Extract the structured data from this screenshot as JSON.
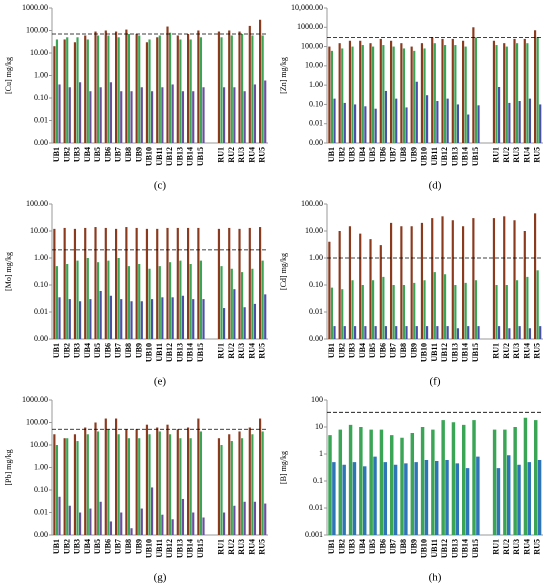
{
  "chart_data": [
    {
      "type": "bar",
      "log": true,
      "panel_label": "(c)",
      "ylabel": "[Cu] mg/kg",
      "categories": [
        "UB1",
        "UB2",
        "UB3",
        "UB4",
        "UB5",
        "UB6",
        "UB7",
        "UB8",
        "UB9",
        "UB10",
        "UB11",
        "UB12",
        "UB13",
        "UB14",
        "UB15",
        null,
        "RU1",
        "RU2",
        "RU3",
        "RU4",
        "RU5"
      ],
      "series": [
        {
          "color": "#8b3a1e",
          "values": [
            20,
            40,
            30,
            60,
            90,
            100,
            90,
            110,
            70,
            30,
            50,
            150,
            60,
            70,
            100,
            null,
            90,
            100,
            90,
            160,
            300
          ]
        },
        {
          "color": "#3aa655",
          "values": [
            40,
            50,
            50,
            40,
            60,
            60,
            50,
            70,
            60,
            40,
            60,
            80,
            40,
            40,
            50,
            null,
            50,
            60,
            70,
            60,
            60
          ]
        },
        {
          "color": "#6a4fa0",
          "values": [
            0.4,
            0.3,
            0.5,
            0.2,
            0.3,
            0.5,
            0.2,
            0.2,
            0.3,
            0.2,
            0.3,
            0.4,
            0.2,
            0.2,
            0.3,
            null,
            0.3,
            0.3,
            0.2,
            0.4,
            0.6
          ]
        }
      ],
      "threshold": 70,
      "ylim": [
        0.001,
        1000
      ],
      "yticks": [
        {
          "value": 0.001,
          "label": "0.00"
        },
        {
          "value": 0.01,
          "label": "0.01"
        },
        {
          "value": 0.1,
          "label": "0.10"
        },
        {
          "value": 1,
          "label": "1.00"
        },
        {
          "value": 10,
          "label": "10.00"
        },
        {
          "value": 100,
          "label": "100.00"
        },
        {
          "value": 1000,
          "label": "1000.00"
        }
      ]
    },
    {
      "type": "bar",
      "log": true,
      "panel_label": "(d)",
      "ylabel": "[Zn] mg/kg",
      "categories": [
        "UB1",
        "UB2",
        "UB3",
        "UB4",
        "UB5",
        "UB6",
        "UB7",
        "UB8",
        "UB9",
        "UB10",
        "UB11",
        "UB12",
        "UB13",
        "UB14",
        "UB15",
        null,
        "RU1",
        "RU2",
        "RU3",
        "RU4",
        "RU5"
      ],
      "series": [
        {
          "color": "#8b3a1e",
          "values": [
            100,
            150,
            200,
            200,
            150,
            250,
            200,
            150,
            100,
            150,
            300,
            250,
            250,
            200,
            1000,
            null,
            200,
            150,
            250,
            250,
            700
          ]
        },
        {
          "color": "#3aa655",
          "values": [
            60,
            80,
            100,
            120,
            100,
            120,
            100,
            80,
            60,
            80,
            150,
            120,
            120,
            100,
            300,
            null,
            120,
            100,
            150,
            150,
            300
          ]
        },
        {
          "color": "#4b4fa8",
          "values": [
            0.2,
            0.12,
            0.1,
            0.08,
            0.06,
            0.5,
            0.2,
            0.07,
            1.5,
            0.3,
            0.15,
            0.2,
            0.1,
            0.03,
            0.09,
            null,
            0.8,
            0.12,
            0.15,
            0.2,
            0.1
          ]
        }
      ],
      "threshold": 300,
      "ylim": [
        0.001,
        10000
      ],
      "yticks": [
        {
          "value": 0.001,
          "label": "0.00"
        },
        {
          "value": 0.01,
          "label": "0.01"
        },
        {
          "value": 0.1,
          "label": "0.10"
        },
        {
          "value": 1,
          "label": "1.00"
        },
        {
          "value": 10,
          "label": "10.00"
        },
        {
          "value": 100,
          "label": "100.00"
        },
        {
          "value": 1000,
          "label": "1000.00"
        },
        {
          "value": 10000,
          "label": "10,000.00"
        }
      ]
    },
    {
      "type": "bar",
      "log": true,
      "panel_label": "(e)",
      "ylabel": "[Mo] mg/kg",
      "categories": [
        "UB1",
        "UB2",
        "UB3",
        "UB4",
        "UB5",
        "UB6",
        "UB7",
        "UB8",
        "UB9",
        "UB10",
        "UB11",
        "UB12",
        "UB13",
        "UB14",
        "UB15",
        null,
        "RU1",
        "RU2",
        "RU3",
        "RU4",
        "RU5"
      ],
      "series": [
        {
          "color": "#8b3a1e",
          "values": [
            12,
            13,
            12,
            13,
            14,
            13,
            12,
            14,
            13,
            12,
            12,
            13,
            13,
            13,
            13,
            null,
            12,
            13,
            12,
            13,
            14
          ]
        },
        {
          "color": "#3aa655",
          "values": [
            0.5,
            0.6,
            0.8,
            1,
            0.7,
            0.8,
            1,
            0.5,
            0.6,
            0.4,
            0.5,
            0.7,
            0.8,
            0.6,
            0.8,
            null,
            0.5,
            0.4,
            0.3,
            0.4,
            0.8
          ]
        },
        {
          "color": "#4b4fa8",
          "values": [
            0.035,
            0.03,
            0.025,
            0.03,
            0.06,
            0.04,
            0.03,
            0.025,
            0.025,
            0.03,
            0.035,
            0.035,
            0.04,
            0.03,
            0.03,
            null,
            0.014,
            0.07,
            0.015,
            0.02,
            0.045
          ]
        }
      ],
      "threshold": 2,
      "ylim": [
        0.001,
        100
      ],
      "yticks": [
        {
          "value": 0.001,
          "label": "0.00"
        },
        {
          "value": 0.01,
          "label": "0.01"
        },
        {
          "value": 0.1,
          "label": "0.10"
        },
        {
          "value": 1,
          "label": "1.00"
        },
        {
          "value": 10,
          "label": "10.00"
        },
        {
          "value": 100,
          "label": "100.00"
        }
      ]
    },
    {
      "type": "bar",
      "log": true,
      "panel_label": "(f)",
      "ylabel": "[Cd] mg/kg",
      "categories": [
        "UB1",
        "UB2",
        "UB3",
        "UB4",
        "UB5",
        "UB6",
        "UB7",
        "UB8",
        "UB9",
        "UB10",
        "UB11",
        "UB12",
        "UB13",
        "UB14",
        "UB15",
        null,
        "RU1",
        "RU2",
        "RU3",
        "RU4",
        "RU5"
      ],
      "series": [
        {
          "color": "#8b3a1e",
          "values": [
            4,
            10,
            15,
            8,
            5,
            3,
            20,
            15,
            15,
            20,
            30,
            35,
            25,
            15,
            30,
            null,
            30,
            35,
            25,
            10,
            45
          ]
        },
        {
          "color": "#3aa655",
          "values": [
            0.08,
            0.07,
            0.15,
            0.1,
            0.15,
            0.2,
            0.1,
            0.1,
            0.12,
            0.15,
            0.3,
            0.25,
            0.1,
            0.12,
            0.15,
            null,
            0.1,
            0.1,
            0.15,
            0.2,
            0.35
          ]
        },
        {
          "color": "#4b4fa8",
          "values": [
            0.003,
            0.003,
            0.003,
            0.003,
            0.003,
            0.003,
            0.003,
            0.003,
            0.003,
            0.003,
            0.003,
            0.003,
            0.0025,
            0.003,
            0.003,
            null,
            0.003,
            0.0025,
            0.003,
            0.0025,
            0.003
          ]
        }
      ],
      "threshold": 1,
      "ylim": [
        0.001,
        100
      ],
      "yticks": [
        {
          "value": 0.001,
          "label": "0.00"
        },
        {
          "value": 0.01,
          "label": "0.01"
        },
        {
          "value": 0.1,
          "label": "0.10"
        },
        {
          "value": 1,
          "label": "1.00"
        },
        {
          "value": 10,
          "label": "10.00"
        },
        {
          "value": 100,
          "label": "100.00"
        }
      ]
    },
    {
      "type": "bar",
      "log": true,
      "panel_label": "(g)",
      "ylabel": "[Pb] mg/kg",
      "categories": [
        "UB1",
        "UB2",
        "UB3",
        "UB4",
        "UB5",
        "UB6",
        "UB7",
        "UB8",
        "UB9",
        "UB10",
        "UB11",
        "UB12",
        "UB13",
        "UB14",
        "UB15",
        null,
        "RU1",
        "RU2",
        "RU3",
        "RU4",
        "RU5"
      ],
      "series": [
        {
          "color": "#8b3a1e",
          "values": [
            30,
            20,
            30,
            60,
            100,
            150,
            150,
            50,
            50,
            80,
            60,
            80,
            50,
            60,
            150,
            null,
            20,
            30,
            40,
            60,
            150
          ]
        },
        {
          "color": "#3aa655",
          "values": [
            10,
            20,
            15,
            30,
            40,
            50,
            30,
            20,
            20,
            30,
            40,
            30,
            20,
            20,
            40,
            null,
            10,
            15,
            20,
            30,
            40
          ]
        },
        {
          "color": "#6a4fa0",
          "values": [
            0.05,
            0.02,
            0.01,
            0.015,
            0.03,
            0.004,
            0.01,
            0.002,
            0.015,
            0.13,
            0.008,
            0.005,
            0.04,
            0.01,
            0.006,
            null,
            0.01,
            0.02,
            0.03,
            0.03,
            0.025
          ]
        }
      ],
      "threshold": 50,
      "ylim": [
        0.001,
        1000
      ],
      "yticks": [
        {
          "value": 0.001,
          "label": "0.00"
        },
        {
          "value": 0.01,
          "label": "0.01"
        },
        {
          "value": 0.1,
          "label": "0.10"
        },
        {
          "value": 1,
          "label": "1.00"
        },
        {
          "value": 10,
          "label": "10.00"
        },
        {
          "value": 100,
          "label": "100.00"
        },
        {
          "value": 1000,
          "label": "1000.00"
        }
      ]
    },
    {
      "type": "bar",
      "log": true,
      "panel_label": "(h)",
      "ylabel": "[B] mg/kg",
      "categories": [
        "UB1",
        "UB2",
        "UB3",
        "UB4",
        "UB5",
        "UB6",
        "UB7",
        "UB8",
        "UB9",
        "UB10",
        "UB11",
        "UB12",
        "UB13",
        "UB14",
        "UB15",
        null,
        "RU1",
        "RU2",
        "RU3",
        "RU4",
        "RU5"
      ],
      "series": [
        {
          "color": "#3aa655",
          "values": [
            5,
            8,
            12,
            10,
            8,
            8,
            5,
            4,
            6,
            10,
            8,
            18,
            15,
            12,
            18,
            null,
            8,
            8,
            10,
            22,
            18
          ]
        },
        {
          "color": "#2e75b6",
          "values": [
            0.5,
            0.4,
            0.5,
            0.35,
            0.8,
            0.5,
            0.4,
            0.45,
            0.5,
            0.6,
            0.55,
            0.6,
            0.45,
            0.3,
            0.8,
            null,
            0.3,
            0.9,
            0.4,
            0.5,
            0.6
          ]
        }
      ],
      "threshold": 35,
      "ylim": [
        0.001,
        100
      ],
      "yticks": [
        0.001,
        0.01,
        0.1,
        1,
        10,
        100
      ]
    }
  ]
}
